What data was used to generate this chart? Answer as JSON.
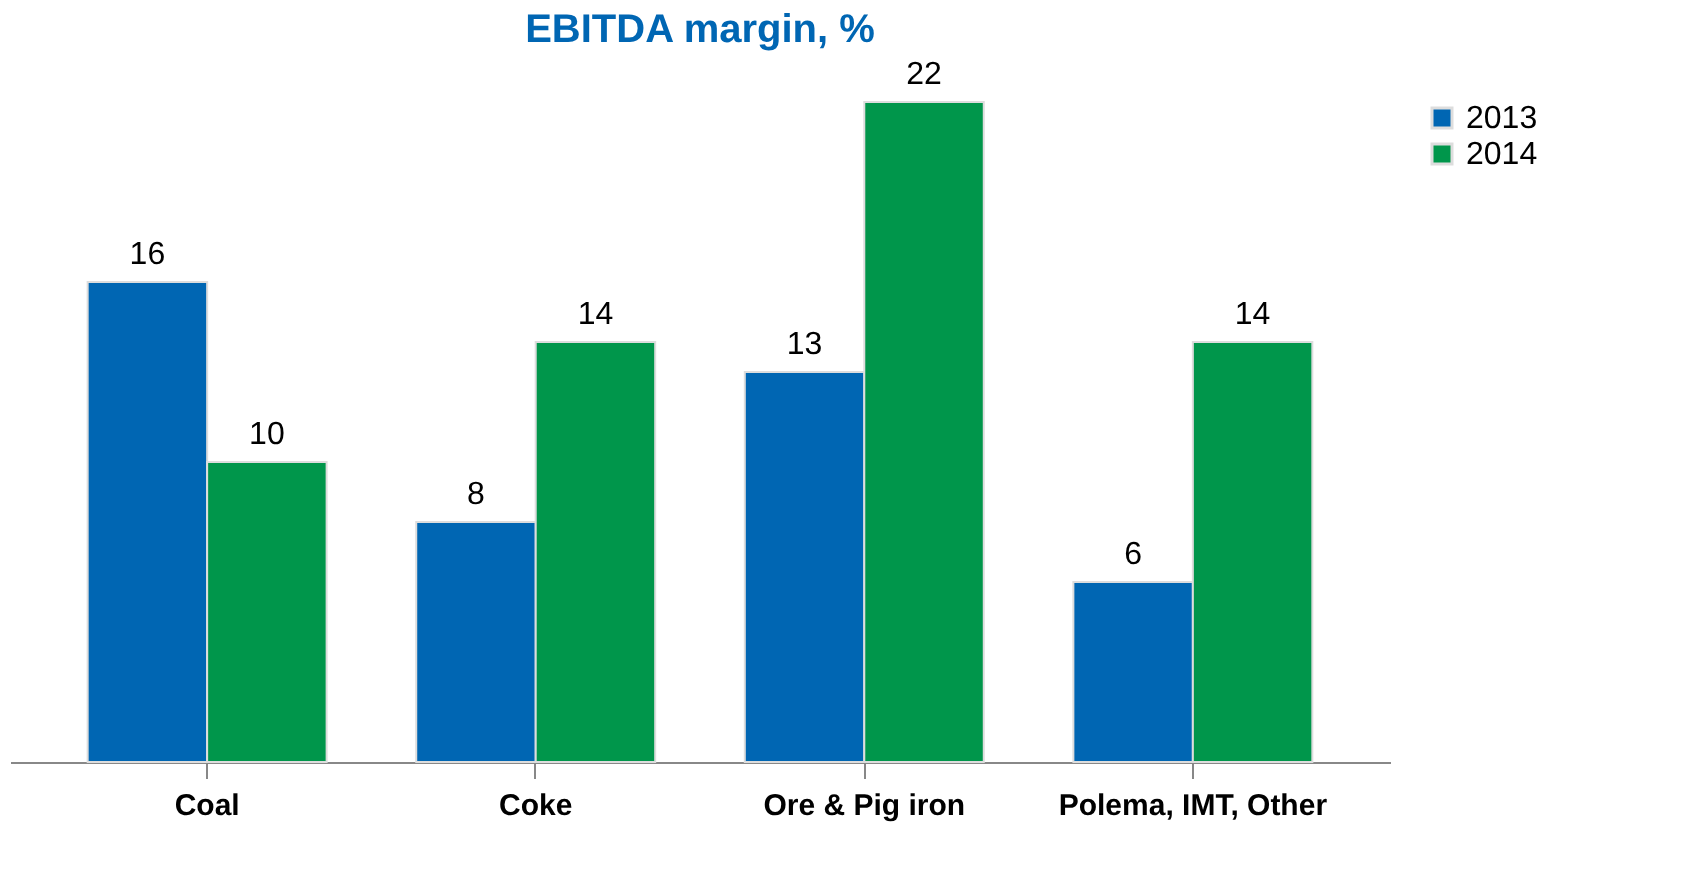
{
  "chart_data": {
    "type": "bar",
    "title": "EBITDA margin, %",
    "categories": [
      "Coal",
      "Coke",
      "Ore & Pig iron",
      "Polema, IMT, Other"
    ],
    "series": [
      {
        "name": "2013",
        "color": "#0066b3",
        "values": [
          16,
          8,
          13,
          6
        ]
      },
      {
        "name": "2014",
        "color": "#00964b",
        "values": [
          10,
          14,
          22,
          14
        ]
      }
    ],
    "data_labels": true,
    "legend": "right"
  }
}
